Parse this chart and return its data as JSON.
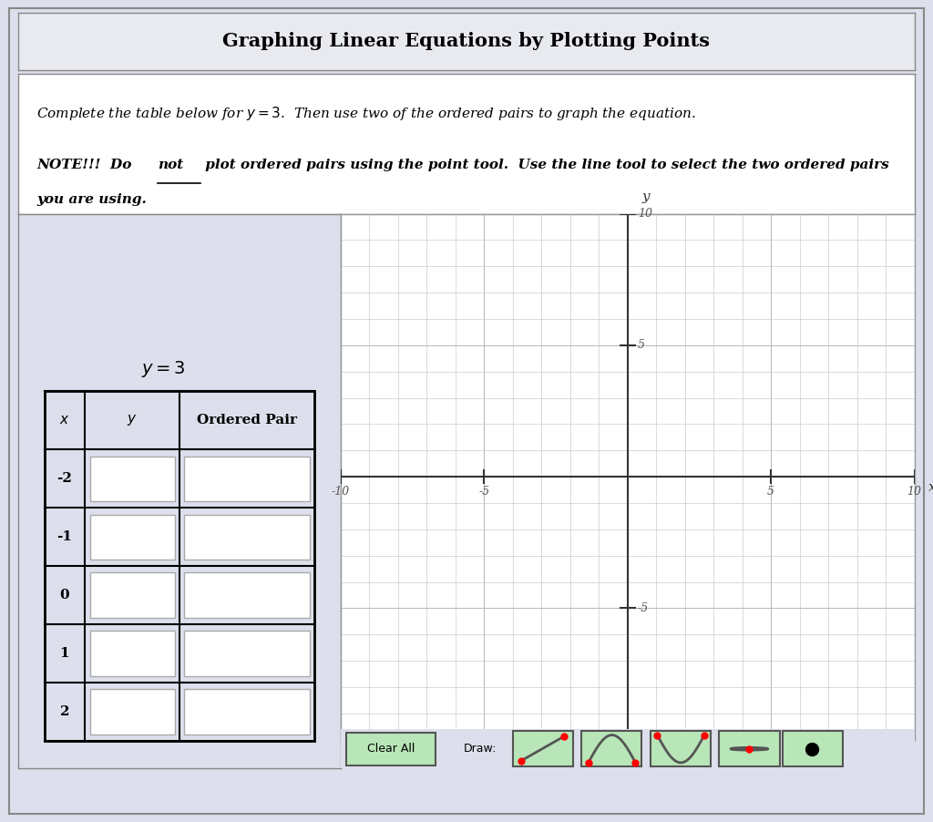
{
  "title": "Graphing Linear Equations by Plotting Points",
  "equation": "y = 3",
  "table_x_values": [
    "-2",
    "-1",
    "0",
    "1",
    "2"
  ],
  "table_headers": [
    "x",
    "y",
    "Ordered Pair"
  ],
  "bg_color": "#dde0ec",
  "grid_color": "#c8c8c8",
  "axis_color": "#333333",
  "plot_bg": "#ffffff",
  "title_bg": "#e8eaf0",
  "button_green": "#90ee90"
}
